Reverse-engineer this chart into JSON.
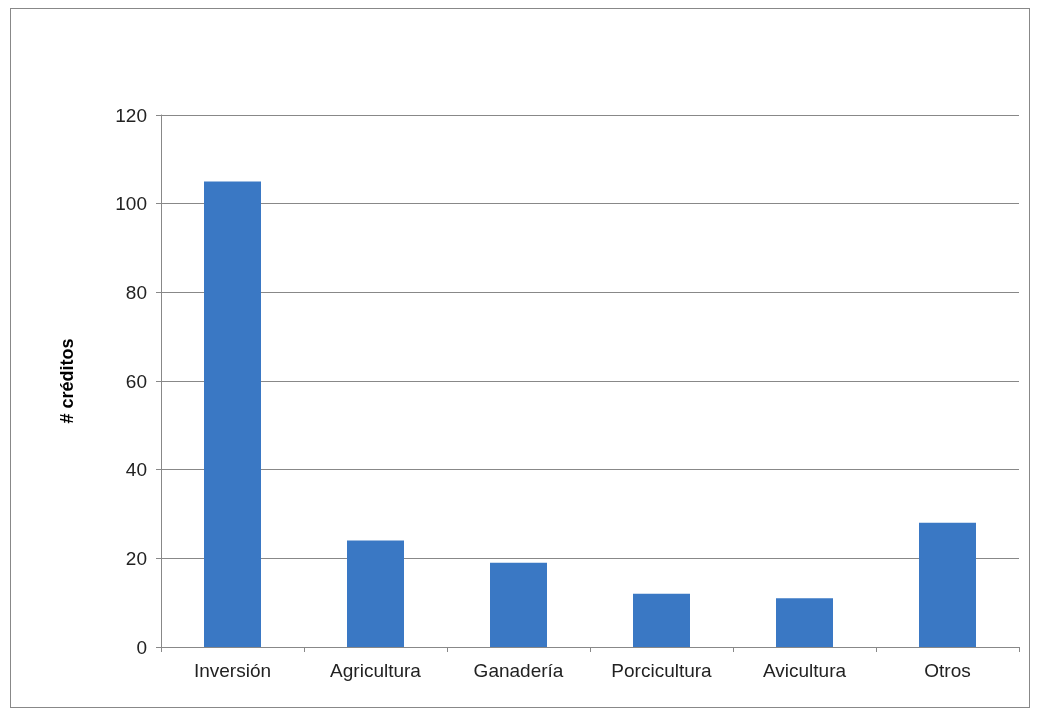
{
  "chart_data": {
    "type": "bar",
    "ylabel": "# créditos",
    "categories": [
      "Inversión",
      "Agricultura",
      "Ganadería",
      "Porcicultura",
      "Avicultura",
      "Otros"
    ],
    "values": [
      105,
      24,
      19,
      12,
      11,
      28
    ],
    "color": "#3a78c4",
    "ylim": [
      0,
      120
    ],
    "yticks": [
      0,
      20,
      40,
      60,
      80,
      100,
      120
    ],
    "grid": "y"
  }
}
